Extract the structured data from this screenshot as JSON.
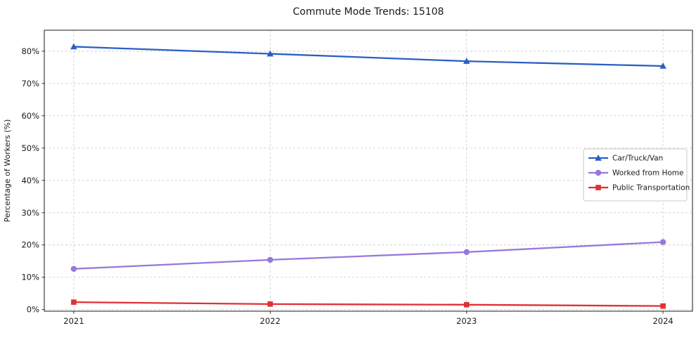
{
  "chart_data": {
    "type": "line",
    "title": "Commute Mode Trends: 15108",
    "xlabel": "",
    "ylabel": "Percentage of Workers (%)",
    "x": [
      2021,
      2022,
      2023,
      2024
    ],
    "xtick_labels": [
      "2021",
      "2022",
      "2023",
      "2024"
    ],
    "yticks": [
      0,
      10,
      20,
      30,
      40,
      50,
      60,
      70,
      80
    ],
    "ytick_labels": [
      "0%",
      "10%",
      "20%",
      "30%",
      "40%",
      "50%",
      "60%",
      "70%",
      "80%"
    ],
    "ylim": [
      -0.5,
      86.5
    ],
    "grid": true,
    "grid_style": "dashed",
    "legend_position": "center-right",
    "series": [
      {
        "name": "Car/Truck/Van",
        "color": "#2a5fc4",
        "marker": "triangle",
        "values": [
          81.4,
          79.2,
          76.9,
          75.4
        ]
      },
      {
        "name": "Worked from Home",
        "color": "#9678dc",
        "marker": "circle",
        "values": [
          12.6,
          15.4,
          17.8,
          20.9
        ]
      },
      {
        "name": "Public Transportation",
        "color": "#e03131",
        "marker": "square",
        "values": [
          2.3,
          1.7,
          1.5,
          1.1
        ]
      }
    ]
  }
}
